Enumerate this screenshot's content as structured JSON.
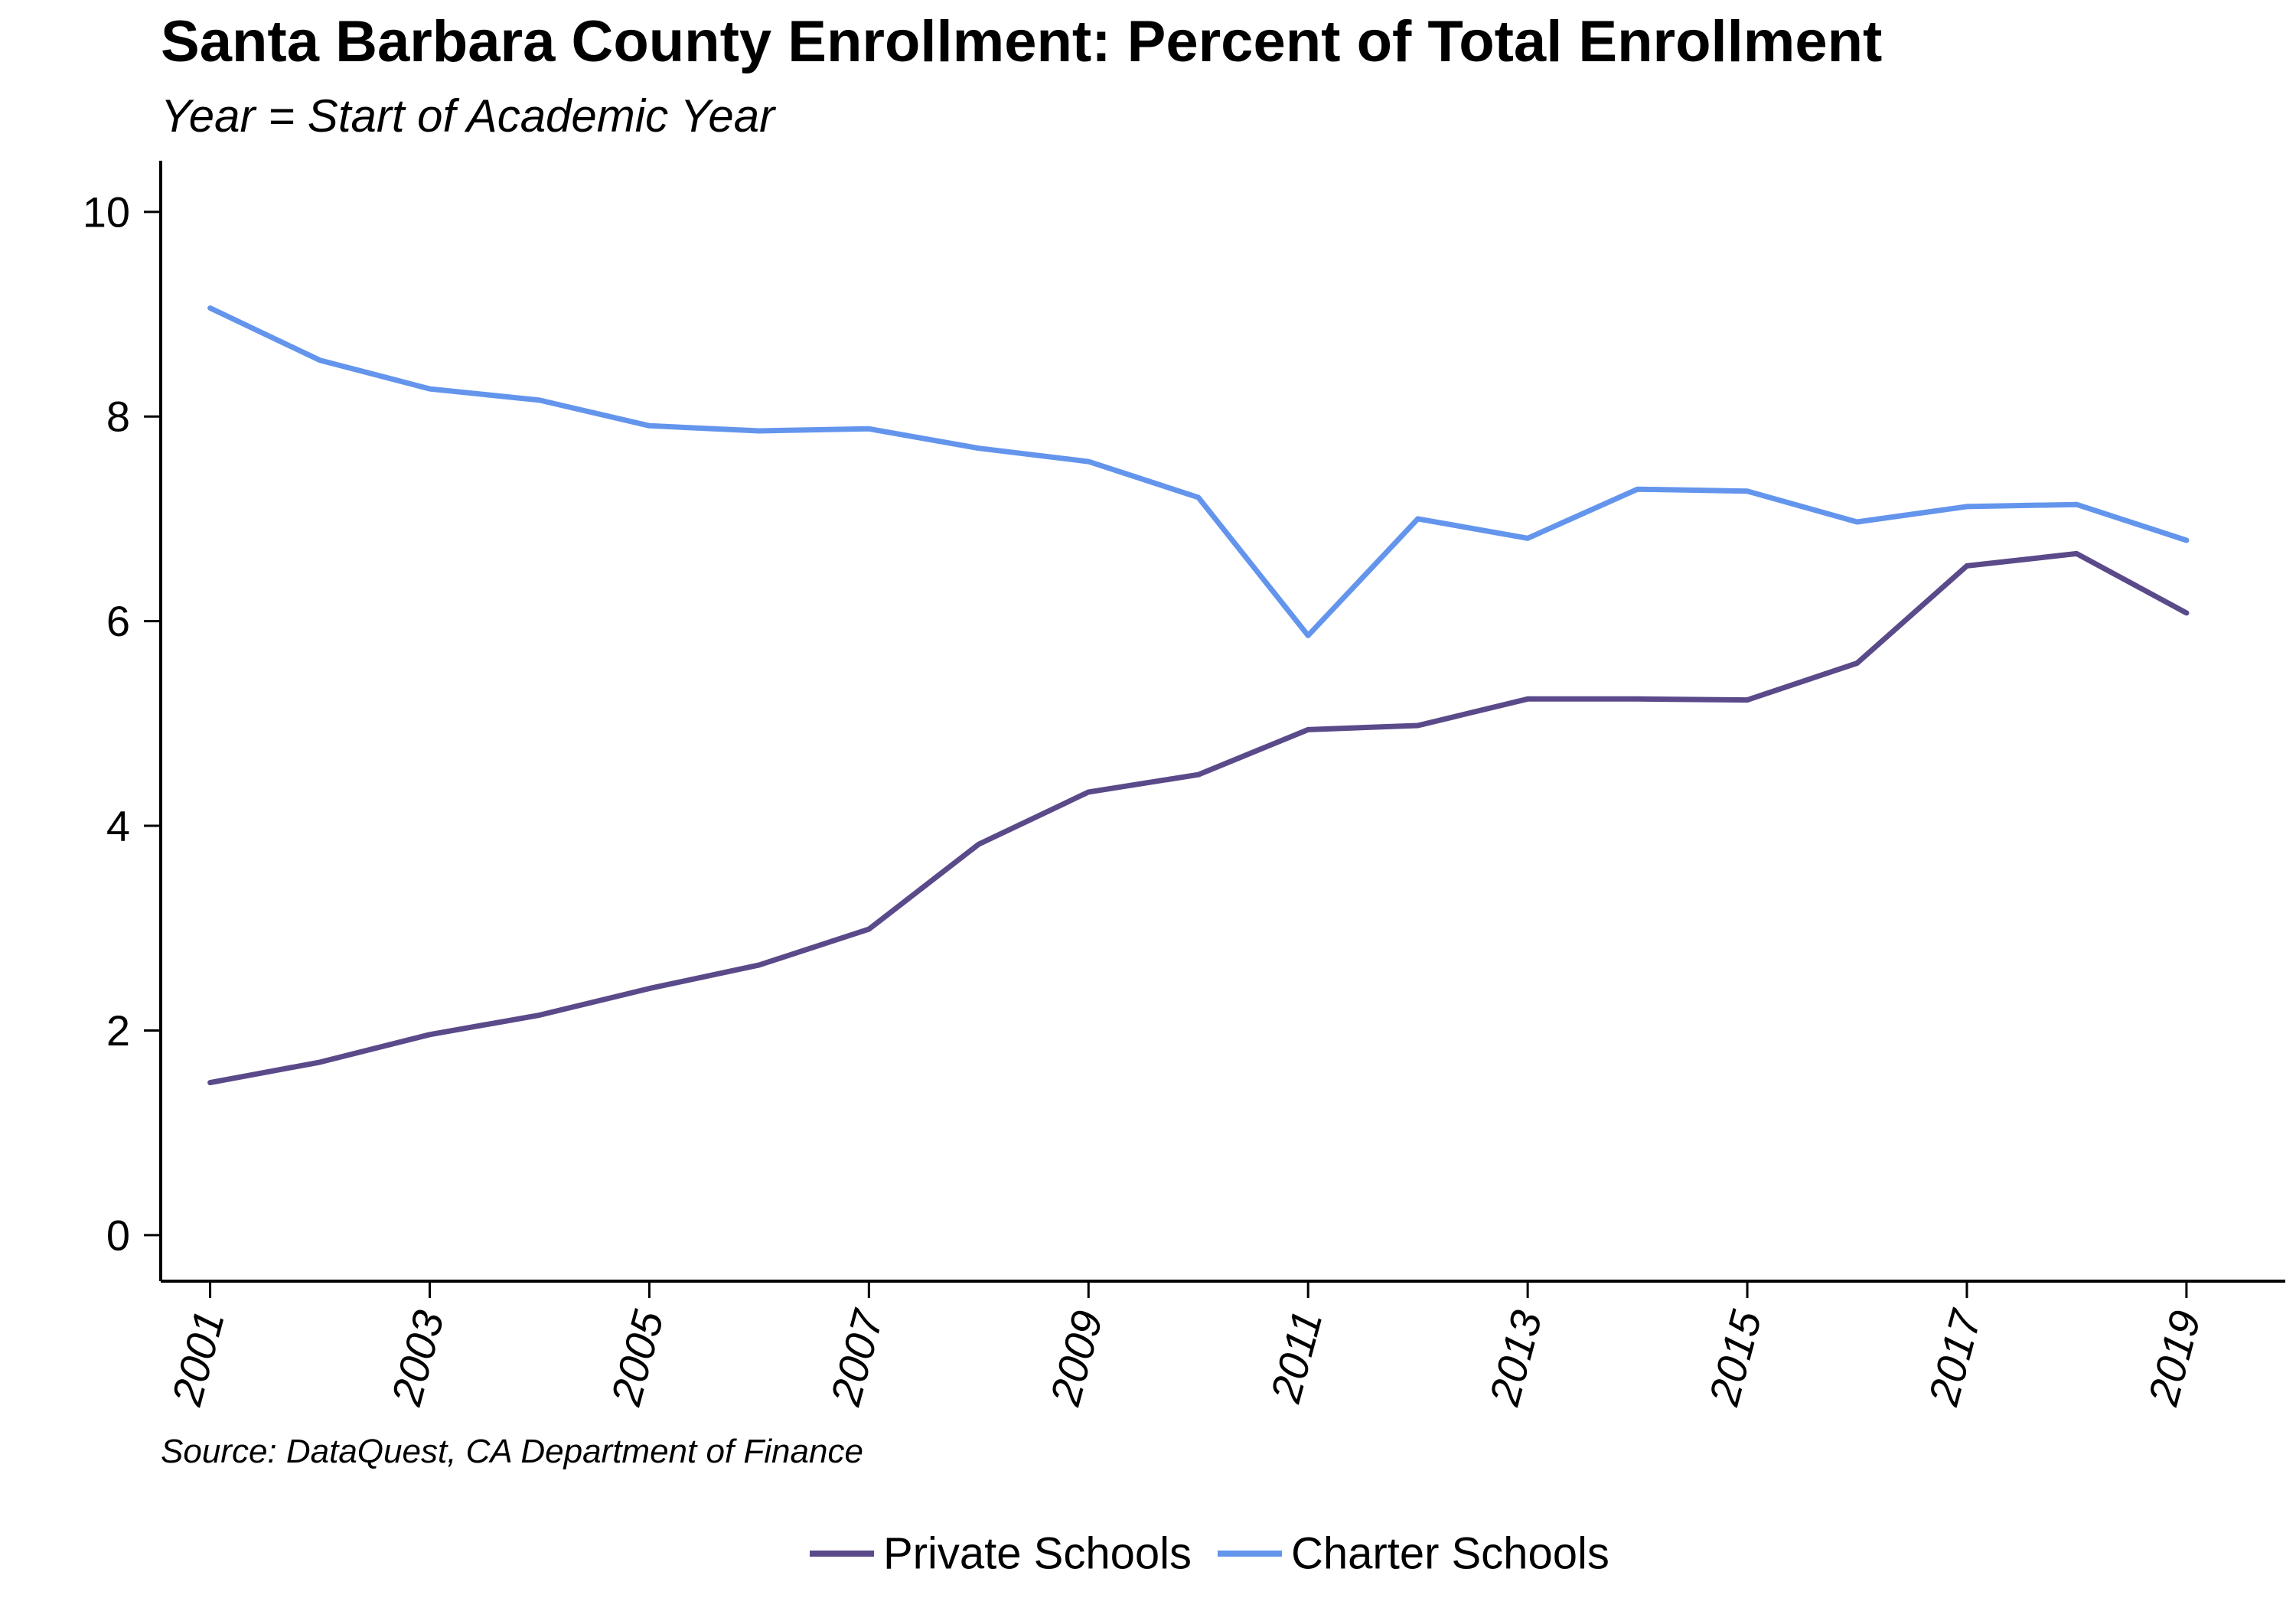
{
  "chart_data": {
    "type": "line",
    "title": "Santa Barbara County Enrollment: Percent of Total Enrollment",
    "subtitle": "Year = Start of Academic Year",
    "caption": "Source: DataQuest, CA Department of Finance",
    "xlabel": "",
    "ylabel": "",
    "x": [
      2001,
      2002,
      2003,
      2004,
      2005,
      2006,
      2007,
      2008,
      2009,
      2010,
      2011,
      2012,
      2013,
      2014,
      2015,
      2016,
      2017,
      2018,
      2019
    ],
    "xticks": [
      "2001",
      "2003",
      "2005",
      "2007",
      "2009",
      "2011",
      "2013",
      "2015",
      "2017",
      "2019"
    ],
    "yticks": [
      "0",
      "2",
      "4",
      "6",
      "8",
      "10"
    ],
    "xlim": [
      2000.55,
      2019.9
    ],
    "ylim": [
      -0.45,
      10.5
    ],
    "grid": false,
    "legend_position": "bottom",
    "series": [
      {
        "name": "Private Schools",
        "color": "#5a4a8a",
        "values": [
          1.49,
          1.69,
          1.96,
          2.15,
          2.41,
          2.64,
          2.99,
          3.82,
          4.33,
          4.5,
          4.94,
          4.98,
          5.24,
          5.24,
          5.23,
          5.59,
          6.54,
          6.66,
          6.08
        ]
      },
      {
        "name": "Charter Schools",
        "color": "#6495ed",
        "values": [
          9.06,
          8.55,
          8.27,
          8.16,
          7.91,
          7.86,
          7.88,
          7.69,
          7.56,
          7.21,
          5.86,
          7.0,
          6.81,
          7.29,
          7.27,
          6.97,
          7.12,
          7.14,
          6.79
        ]
      }
    ]
  }
}
